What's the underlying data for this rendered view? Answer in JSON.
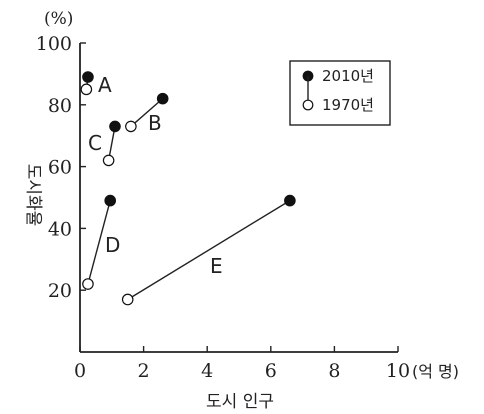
{
  "chart_data": {
    "type": "scatter",
    "xlabel": "도시 인구",
    "x_unit": "(억 명)",
    "ylabel": "도시화율",
    "y_unit": "(%)",
    "xlim": [
      0,
      10
    ],
    "ylim": [
      0,
      100
    ],
    "x_ticks": [
      "0",
      "2",
      "4",
      "6",
      "8",
      "10"
    ],
    "y_ticks": [
      "20",
      "40",
      "60",
      "80",
      "100"
    ],
    "legend": {
      "position": "top-right",
      "entries": [
        "2010년",
        "1970년"
      ]
    },
    "series": [
      {
        "name": "2010년",
        "marker": "filled-circle",
        "points": [
          {
            "label": "A",
            "x": 0.25,
            "y": 89
          },
          {
            "label": "B",
            "x": 2.6,
            "y": 82
          },
          {
            "label": "C",
            "x": 1.1,
            "y": 73
          },
          {
            "label": "D",
            "x": 0.95,
            "y": 49
          },
          {
            "label": "E",
            "x": 6.6,
            "y": 49
          }
        ]
      },
      {
        "name": "1970년",
        "marker": "open-circle",
        "points": [
          {
            "label": "A",
            "x": 0.2,
            "y": 85
          },
          {
            "label": "B",
            "x": 1.6,
            "y": 73
          },
          {
            "label": "C",
            "x": 0.9,
            "y": 62
          },
          {
            "label": "D",
            "x": 0.25,
            "y": 22
          },
          {
            "label": "E",
            "x": 1.5,
            "y": 17
          }
        ]
      }
    ],
    "point_labels": [
      "A",
      "B",
      "C",
      "D",
      "E"
    ],
    "colors": {
      "axis": "#222222",
      "marker": "#111111",
      "open_fill": "#ffffff"
    }
  }
}
